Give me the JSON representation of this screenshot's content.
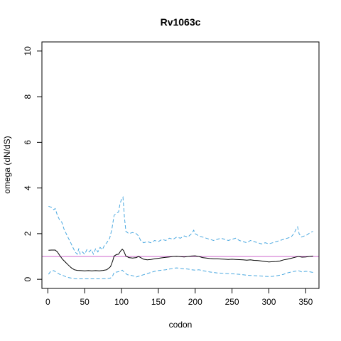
{
  "chart_data": {
    "type": "line",
    "title": "Rv1063c",
    "xlabel": "codon",
    "ylabel": "omega (dN/dS)",
    "xlim": [
      -8,
      368
    ],
    "ylim": [
      -0.4,
      10.4
    ],
    "xticks": [
      0,
      50,
      100,
      150,
      200,
      250,
      300,
      350
    ],
    "yticks": [
      0,
      2,
      4,
      6,
      8,
      10
    ],
    "reference_line": {
      "y": 1.0,
      "color": "#cc66cc"
    },
    "series": [
      {
        "role": "upper",
        "color": "#4aa8e0",
        "dash": true,
        "points": [
          [
            1,
            3.2
          ],
          [
            5,
            3.15
          ],
          [
            8,
            3.05
          ],
          [
            10,
            3.1
          ],
          [
            13,
            2.8
          ],
          [
            16,
            2.6
          ],
          [
            19,
            2.5
          ],
          [
            22,
            2.2
          ],
          [
            25,
            2.0
          ],
          [
            28,
            1.8
          ],
          [
            31,
            1.6
          ],
          [
            34,
            1.4
          ],
          [
            37,
            1.2
          ],
          [
            40,
            1.1
          ],
          [
            42,
            1.35
          ],
          [
            44,
            1.1
          ],
          [
            47,
            1.2
          ],
          [
            50,
            1.1
          ],
          [
            53,
            1.3
          ],
          [
            56,
            1.2
          ],
          [
            59,
            1.3
          ],
          [
            62,
            1.1
          ],
          [
            65,
            1.35
          ],
          [
            68,
            1.2
          ],
          [
            71,
            1.4
          ],
          [
            74,
            1.3
          ],
          [
            77,
            1.5
          ],
          [
            80,
            1.6
          ],
          [
            84,
            1.8
          ],
          [
            87,
            2.2
          ],
          [
            90,
            2.8
          ],
          [
            93,
            2.9
          ],
          [
            96,
            2.95
          ],
          [
            98,
            3.3
          ],
          [
            100,
            3.5
          ],
          [
            102,
            3.6
          ],
          [
            104,
            2.7
          ],
          [
            106,
            2.1
          ],
          [
            110,
            2.0
          ],
          [
            115,
            2.05
          ],
          [
            120,
            2.0
          ],
          [
            123,
            1.9
          ],
          [
            126,
            1.7
          ],
          [
            130,
            1.6
          ],
          [
            135,
            1.65
          ],
          [
            140,
            1.6
          ],
          [
            145,
            1.7
          ],
          [
            150,
            1.65
          ],
          [
            155,
            1.75
          ],
          [
            160,
            1.7
          ],
          [
            165,
            1.8
          ],
          [
            170,
            1.75
          ],
          [
            175,
            1.85
          ],
          [
            180,
            1.8
          ],
          [
            185,
            1.9
          ],
          [
            190,
            1.85
          ],
          [
            195,
            2.0
          ],
          [
            198,
            2.15
          ],
          [
            200,
            2.0
          ],
          [
            205,
            1.9
          ],
          [
            210,
            1.85
          ],
          [
            215,
            1.8
          ],
          [
            220,
            1.75
          ],
          [
            225,
            1.7
          ],
          [
            230,
            1.75
          ],
          [
            235,
            1.8
          ],
          [
            240,
            1.75
          ],
          [
            245,
            1.7
          ],
          [
            250,
            1.75
          ],
          [
            255,
            1.8
          ],
          [
            260,
            1.7
          ],
          [
            265,
            1.65
          ],
          [
            270,
            1.6
          ],
          [
            275,
            1.7
          ],
          [
            280,
            1.65
          ],
          [
            285,
            1.6
          ],
          [
            290,
            1.55
          ],
          [
            295,
            1.6
          ],
          [
            300,
            1.55
          ],
          [
            305,
            1.6
          ],
          [
            310,
            1.65
          ],
          [
            315,
            1.7
          ],
          [
            320,
            1.75
          ],
          [
            325,
            1.8
          ],
          [
            330,
            1.85
          ],
          [
            334,
            2.0
          ],
          [
            337,
            2.2
          ],
          [
            339,
            2.3
          ],
          [
            341,
            2.0
          ],
          [
            344,
            1.85
          ],
          [
            348,
            1.9
          ],
          [
            352,
            1.95
          ],
          [
            356,
            2.05
          ],
          [
            360,
            2.1
          ]
        ]
      },
      {
        "role": "estimate",
        "color": "#000000",
        "dash": false,
        "points": [
          [
            1,
            1.27
          ],
          [
            5,
            1.28
          ],
          [
            10,
            1.28
          ],
          [
            13,
            1.2
          ],
          [
            16,
            1.05
          ],
          [
            20,
            0.88
          ],
          [
            24,
            0.75
          ],
          [
            28,
            0.62
          ],
          [
            32,
            0.5
          ],
          [
            36,
            0.42
          ],
          [
            40,
            0.39
          ],
          [
            45,
            0.38
          ],
          [
            50,
            0.37
          ],
          [
            55,
            0.38
          ],
          [
            60,
            0.37
          ],
          [
            65,
            0.38
          ],
          [
            70,
            0.37
          ],
          [
            75,
            0.39
          ],
          [
            80,
            0.42
          ],
          [
            85,
            0.55
          ],
          [
            88,
            0.8
          ],
          [
            90,
            1.02
          ],
          [
            93,
            1.08
          ],
          [
            96,
            1.1
          ],
          [
            99,
            1.25
          ],
          [
            101,
            1.32
          ],
          [
            103,
            1.25
          ],
          [
            106,
            1.02
          ],
          [
            110,
            0.95
          ],
          [
            115,
            0.93
          ],
          [
            120,
            0.95
          ],
          [
            123,
            1.0
          ],
          [
            126,
            0.95
          ],
          [
            130,
            0.88
          ],
          [
            135,
            0.85
          ],
          [
            140,
            0.87
          ],
          [
            145,
            0.9
          ],
          [
            150,
            0.92
          ],
          [
            155,
            0.94
          ],
          [
            160,
            0.96
          ],
          [
            165,
            0.98
          ],
          [
            170,
            1.0
          ],
          [
            175,
            1.01
          ],
          [
            180,
            0.99
          ],
          [
            185,
            0.98
          ],
          [
            190,
            1.0
          ],
          [
            195,
            1.02
          ],
          [
            200,
            1.03
          ],
          [
            205,
            1.0
          ],
          [
            210,
            0.95
          ],
          [
            215,
            0.93
          ],
          [
            220,
            0.91
          ],
          [
            225,
            0.9
          ],
          [
            230,
            0.9
          ],
          [
            235,
            0.89
          ],
          [
            240,
            0.88
          ],
          [
            245,
            0.87
          ],
          [
            250,
            0.88
          ],
          [
            255,
            0.87
          ],
          [
            260,
            0.86
          ],
          [
            265,
            0.85
          ],
          [
            270,
            0.84
          ],
          [
            275,
            0.85
          ],
          [
            280,
            0.83
          ],
          [
            285,
            0.82
          ],
          [
            290,
            0.8
          ],
          [
            295,
            0.78
          ],
          [
            300,
            0.76
          ],
          [
            305,
            0.77
          ],
          [
            310,
            0.78
          ],
          [
            315,
            0.8
          ],
          [
            320,
            0.85
          ],
          [
            325,
            0.88
          ],
          [
            330,
            0.92
          ],
          [
            335,
            0.96
          ],
          [
            340,
            1.0
          ],
          [
            345,
            0.97
          ],
          [
            350,
            0.98
          ],
          [
            355,
            1.0
          ],
          [
            360,
            1.02
          ]
        ]
      },
      {
        "role": "lower",
        "color": "#4aa8e0",
        "dash": true,
        "points": [
          [
            1,
            0.22
          ],
          [
            4,
            0.35
          ],
          [
            8,
            0.38
          ],
          [
            12,
            0.3
          ],
          [
            16,
            0.22
          ],
          [
            20,
            0.18
          ],
          [
            24,
            0.12
          ],
          [
            28,
            0.08
          ],
          [
            32,
            0.05
          ],
          [
            36,
            0.03
          ],
          [
            40,
            0.02
          ],
          [
            50,
            0.02
          ],
          [
            60,
            0.02
          ],
          [
            70,
            0.02
          ],
          [
            80,
            0.03
          ],
          [
            85,
            0.05
          ],
          [
            88,
            0.15
          ],
          [
            90,
            0.3
          ],
          [
            94,
            0.32
          ],
          [
            98,
            0.35
          ],
          [
            101,
            0.4
          ],
          [
            104,
            0.3
          ],
          [
            108,
            0.2
          ],
          [
            112,
            0.18
          ],
          [
            116,
            0.15
          ],
          [
            120,
            0.1
          ],
          [
            125,
            0.15
          ],
          [
            130,
            0.2
          ],
          [
            135,
            0.25
          ],
          [
            140,
            0.3
          ],
          [
            145,
            0.35
          ],
          [
            150,
            0.38
          ],
          [
            155,
            0.4
          ],
          [
            160,
            0.42
          ],
          [
            165,
            0.45
          ],
          [
            170,
            0.48
          ],
          [
            175,
            0.5
          ],
          [
            180,
            0.48
          ],
          [
            185,
            0.46
          ],
          [
            190,
            0.45
          ],
          [
            195,
            0.42
          ],
          [
            200,
            0.4
          ],
          [
            205,
            0.42
          ],
          [
            210,
            0.38
          ],
          [
            215,
            0.35
          ],
          [
            220,
            0.32
          ],
          [
            225,
            0.3
          ],
          [
            230,
            0.28
          ],
          [
            235,
            0.27
          ],
          [
            240,
            0.26
          ],
          [
            245,
            0.25
          ],
          [
            250,
            0.24
          ],
          [
            255,
            0.23
          ],
          [
            260,
            0.22
          ],
          [
            265,
            0.2
          ],
          [
            270,
            0.18
          ],
          [
            275,
            0.17
          ],
          [
            280,
            0.16
          ],
          [
            285,
            0.15
          ],
          [
            290,
            0.14
          ],
          [
            295,
            0.13
          ],
          [
            300,
            0.12
          ],
          [
            305,
            0.13
          ],
          [
            310,
            0.15
          ],
          [
            315,
            0.18
          ],
          [
            320,
            0.22
          ],
          [
            325,
            0.28
          ],
          [
            330,
            0.32
          ],
          [
            335,
            0.35
          ],
          [
            340,
            0.38
          ],
          [
            345,
            0.32
          ],
          [
            350,
            0.35
          ],
          [
            355,
            0.33
          ],
          [
            360,
            0.3
          ]
        ]
      }
    ]
  }
}
